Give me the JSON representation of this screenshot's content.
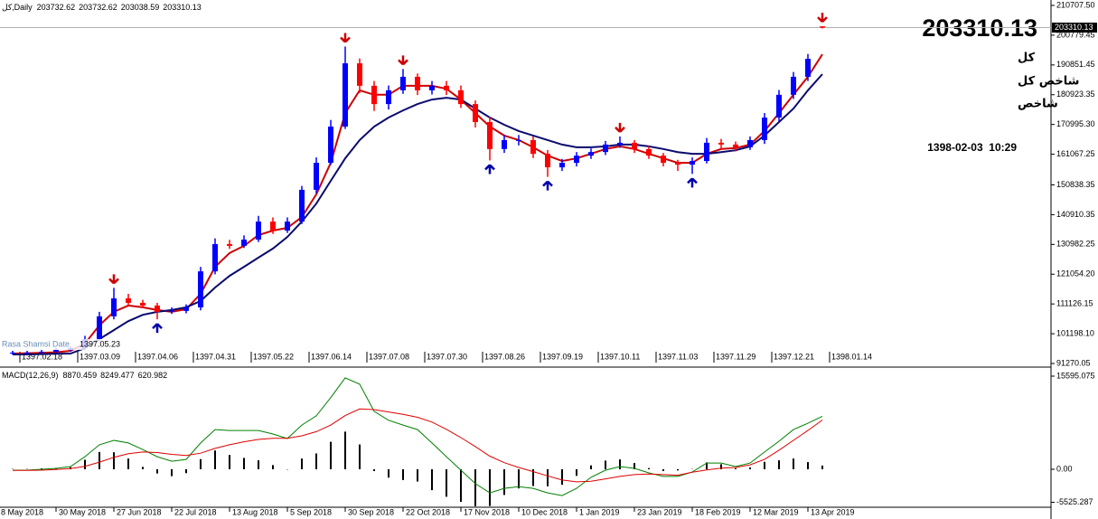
{
  "panel": {
    "symbol": "کل",
    "name": "شاخص کل",
    "short_name": "شاخص",
    "datetime": "1398-02-03  10:29",
    "indicator_label": "Rasa Shamsi Date",
    "cursor_date": "1397.05.23"
  },
  "chart_data": [
    {
      "type": "candlestick",
      "title": "کل,Daily",
      "up_color": "#0000ff",
      "down_color": "#ff0000",
      "open": [
        94700,
        94900,
        94900,
        95200,
        95800,
        96400,
        99400,
        107000,
        113000,
        111500,
        110600,
        108500,
        108800,
        110000,
        122000,
        131100,
        130500,
        132600,
        138600,
        135600,
        138600,
        149200,
        158200,
        170300,
        191400,
        183900,
        177800,
        182400,
        186900,
        182400,
        183900,
        182400,
        177800,
        171800,
        162800,
        165800,
        165800,
        161200,
        156700,
        158200,
        160600,
        161800,
        164300,
        164900,
        162800,
        160600,
        158200,
        157600,
        158800,
        164900,
        164300,
        163400,
        165800,
        173300,
        180900,
        186900,
        203732.62
      ],
      "high": [
        95500,
        95500,
        95800,
        96400,
        97000,
        100500,
        108500,
        116500,
        114500,
        112500,
        111500,
        110000,
        111000,
        123500,
        133000,
        132500,
        134000,
        140500,
        140000,
        140000,
        150500,
        160000,
        172500,
        197000,
        193000,
        185500,
        184000,
        189500,
        188000,
        185500,
        185500,
        184000,
        179000,
        173500,
        167500,
        167500,
        167000,
        162500,
        159500,
        161800,
        163000,
        165500,
        167000,
        165800,
        163800,
        161500,
        159200,
        160000,
        166500,
        166200,
        165300,
        167000,
        174800,
        182500,
        188500,
        194500,
        203732.62
      ],
      "low": [
        94200,
        94300,
        94400,
        94700,
        95200,
        95800,
        98600,
        106000,
        110500,
        109800,
        106000,
        107800,
        108000,
        109000,
        121000,
        129500,
        129800,
        131800,
        134500,
        134800,
        137800,
        148000,
        157500,
        169500,
        181500,
        175500,
        176000,
        181200,
        180800,
        181000,
        180800,
        176500,
        170000,
        159000,
        161500,
        164000,
        159800,
        153500,
        155500,
        157000,
        159500,
        160800,
        163200,
        161500,
        159500,
        157000,
        155500,
        154500,
        158000,
        162500,
        162000,
        162500,
        164500,
        172000,
        179500,
        185500,
        203038.59
      ],
      "close": [
        94900,
        94900,
        95200,
        95800,
        96400,
        99400,
        107000,
        113000,
        111500,
        110600,
        108500,
        108800,
        110000,
        122000,
        131100,
        130500,
        132600,
        138600,
        135600,
        138600,
        149200,
        158200,
        170300,
        191400,
        183900,
        177800,
        182400,
        186900,
        182400,
        183900,
        182400,
        177800,
        171800,
        162800,
        165800,
        165800,
        161200,
        156700,
        158200,
        160600,
        161800,
        164300,
        164900,
        162800,
        160600,
        158200,
        157600,
        158800,
        164900,
        164300,
        163400,
        165800,
        173300,
        180900,
        186900,
        192900,
        203310.13
      ],
      "series": [
        {
          "color": "#cc0000",
          "values": [
            94600,
            94700,
            94800,
            95000,
            95500,
            97900,
            104000,
            108500,
            110600,
            110000,
            109100,
            108500,
            109400,
            114500,
            123500,
            128100,
            130500,
            134100,
            135600,
            136500,
            140100,
            147700,
            158200,
            174800,
            182400,
            180900,
            180900,
            183900,
            183900,
            183900,
            182900,
            179300,
            174800,
            170300,
            167300,
            165800,
            163400,
            160600,
            158800,
            159700,
            161200,
            162800,
            163700,
            162800,
            161200,
            159700,
            158200,
            158200,
            161200,
            162800,
            163100,
            164300,
            168800,
            174800,
            180900,
            186900,
            194400
          ]
        },
        {
          "color": "#0a0a6e",
          "values": [
            94300,
            94300,
            94400,
            94500,
            94600,
            96400,
            99400,
            102400,
            105400,
            107500,
            108500,
            109100,
            110000,
            112100,
            116600,
            120500,
            123500,
            126600,
            129600,
            133500,
            138600,
            144600,
            152200,
            159700,
            165800,
            170300,
            173300,
            175700,
            177800,
            179300,
            179900,
            179300,
            176300,
            173300,
            170900,
            168800,
            167300,
            165800,
            164300,
            163400,
            163400,
            163700,
            164300,
            164300,
            163700,
            162800,
            161800,
            161200,
            161200,
            161800,
            162400,
            163700,
            167300,
            171800,
            176300,
            182400,
            187800
          ]
        }
      ],
      "fractal_down": [
        7,
        23,
        27,
        42,
        56
      ],
      "fractal_down_color": "#cc0000",
      "fractal_up": [
        10,
        33,
        37,
        47
      ],
      "fractal_up_color": "#0000aa",
      "ylim": [
        91270.05,
        210707.5
      ],
      "yticks": [
        {
          "value": 210707.5,
          "label": "210707.50"
        },
        200779.45,
        190851.45,
        180923.35,
        {
          "value": 170995.3,
          "label": "170995.30"
        },
        161067.25,
        150838.35,
        140910.35,
        130982.25,
        {
          "value": 121054.2,
          "label": "121054.20"
        },
        111126.15,
        {
          "value": 101198.1,
          "label": "101198.10"
        },
        91270.05
      ],
      "xlim": [
        -0.875,
        71.875
      ],
      "xticks": [
        {
          "value": 0.5,
          "label": "1397.02.18"
        },
        {
          "value": 4.5,
          "label": "1397.03.09"
        },
        {
          "value": 8.5,
          "label": "1397.04.06"
        },
        {
          "value": 12.5,
          "label": "1397.04.31"
        },
        {
          "value": 16.5,
          "label": "1397.05.22"
        },
        {
          "value": 20.5,
          "label": "1397.06.14"
        },
        {
          "value": 24.5,
          "label": "1397.07.08"
        },
        {
          "value": 28.5,
          "label": "1397.07.30"
        },
        {
          "value": 32.5,
          "label": "1397.08.26"
        },
        {
          "value": 36.5,
          "label": "1397.09.19"
        },
        {
          "value": 40.5,
          "label": "1397.10.11"
        },
        {
          "value": 44.5,
          "label": "1397.11.03"
        },
        {
          "value": 48.5,
          "label": "1397.11.29"
        },
        {
          "value": 52.5,
          "label": "1397.12.21"
        },
        {
          "value": 56.5,
          "label": "1398.01.14"
        }
      ]
    },
    {
      "type": "macd",
      "title": "MACD(12,26,9)",
      "series": [
        {
          "color": "#008000",
          "values": [
            -150,
            -150,
            0,
            150,
            450,
            2100,
            4100,
            4850,
            4400,
            3300,
            2100,
            1350,
            1650,
            4400,
            6650,
            6500,
            6500,
            6500,
            5900,
            5150,
            7400,
            8950,
            12000,
            15300,
            14250,
            9700,
            8200,
            7400,
            6650,
            4400,
            2100,
            -150,
            -2400,
            -3950,
            -3200,
            -2900,
            -3200,
            -3950,
            -4400,
            -3200,
            -1350,
            -150,
            450,
            150,
            -600,
            -1200,
            -1200,
            -450,
            1050,
            1050,
            450,
            1050,
            2900,
            4700,
            6650,
            7700,
            8870.459
          ]
        },
        {
          "color": "#e00000",
          "values": [
            -200,
            -200,
            -150,
            -50,
            100,
            500,
            1200,
            2000,
            2600,
            2900,
            2800,
            2500,
            2300,
            2700,
            3500,
            4100,
            4600,
            5000,
            5200,
            5200,
            5600,
            6300,
            7400,
            9000,
            10100,
            10000,
            9600,
            9200,
            8700,
            7900,
            6700,
            5300,
            3800,
            2200,
            1100,
            300,
            -400,
            -1100,
            -1800,
            -2100,
            -2000,
            -1600,
            -1200,
            -900,
            -800,
            -900,
            -1000,
            -500,
            -100,
            200,
            300,
            750,
            1650,
            3200,
            4850,
            6500,
            8249.477
          ]
        }
      ],
      "histogram": {
        "color": "#000000",
        "values": [
          50,
          50,
          150,
          200,
          350,
          1600,
          2900,
          2850,
          1800,
          400,
          -700,
          -1150,
          -650,
          1700,
          3150,
          2400,
          1900,
          1500,
          700,
          -50,
          1800,
          2650,
          4600,
          6300,
          4150,
          -300,
          -1400,
          -1800,
          -2050,
          -3500,
          -4600,
          -5450,
          -6200,
          -6150,
          -4300,
          -3200,
          -2800,
          -2850,
          -2600,
          -1100,
          650,
          1450,
          1650,
          1050,
          200,
          -300,
          -200,
          50,
          1150,
          850,
          150,
          300,
          1250,
          1500,
          1800,
          1200,
          620.982
        ]
      },
      "ylim": [
        -5525.287,
        15595.075
      ],
      "yticks": [
        15595.075,
        {
          "value": 0,
          "label": "0.00"
        },
        -5525.287
      ],
      "xlim": [
        -0.875,
        71.875
      ],
      "xticks": [
        {
          "value": -1,
          "label": "8 May 2018"
        },
        {
          "value": 3,
          "label": "30 May 2018"
        },
        {
          "value": 7,
          "label": "27 Jun 2018"
        },
        {
          "value": 11,
          "label": "22 Jul 2018"
        },
        {
          "value": 15,
          "label": "13 Aug 2018"
        },
        {
          "value": 19,
          "label": "5 Sep 2018"
        },
        {
          "value": 23,
          "label": "30 Sep 2018"
        },
        {
          "value": 27,
          "label": "22 Oct 2018"
        },
        {
          "value": 31,
          "label": "17 Nov 2018"
        },
        {
          "value": 35,
          "label": "10 Dec 2018"
        },
        {
          "value": 39,
          "label": "1 Jan 2019"
        },
        {
          "value": 43,
          "label": "23 Jan 2019"
        },
        {
          "value": 47,
          "label": "18 Feb 2019"
        },
        {
          "value": 51,
          "label": "12 Mar 2019"
        },
        {
          "value": 55,
          "label": "13 Apr 2019"
        }
      ]
    }
  ]
}
